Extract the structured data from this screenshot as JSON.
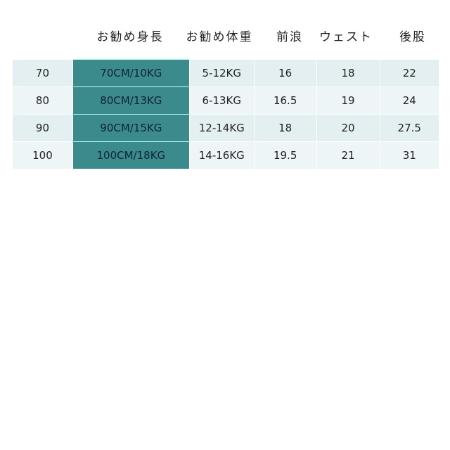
{
  "headers": [
    "お勧め身長",
    "お勧め体重",
    "前浪",
    "ウェスト",
    "後股"
  ],
  "rows": [
    [
      "70",
      "70CM/10KG",
      "5-12KG",
      "16",
      "18",
      "22"
    ],
    [
      "80",
      "80CM/13KG",
      "6-13KG",
      "16.5",
      "19",
      "24"
    ],
    [
      "90",
      "90CM/15KG",
      "12-14KG",
      "18",
      "20",
      "27.5"
    ],
    [
      "100",
      "100CM/18KG",
      "14-16KG",
      "19.5",
      "21",
      "31"
    ]
  ],
  "colors": {
    "highlight": "#3b8b8c",
    "row_a": "#e3eff1",
    "row_b": "#eef5f7"
  }
}
